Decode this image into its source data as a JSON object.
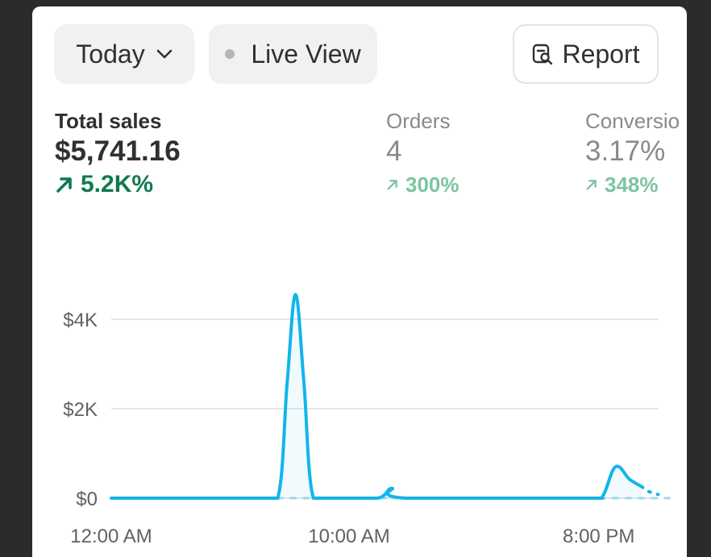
{
  "toolbar": {
    "date_label": "Today",
    "live_label": "Live View",
    "report_label": "Report"
  },
  "metrics": {
    "total_sales": {
      "label": "Total sales",
      "value": "$5,741.16",
      "change": "5.2K%"
    },
    "orders": {
      "label": "Orders",
      "value": "4",
      "change": "300%"
    },
    "conversion": {
      "label": "Conversio",
      "value": "3.17%",
      "change": "348%"
    }
  },
  "chart_data": {
    "type": "line",
    "y_ticks": [
      "$4K",
      "$2K",
      "$0"
    ],
    "x_ticks": [
      "12:00 AM",
      "10:00 AM",
      "8:00 PM"
    ],
    "ylim": [
      0,
      4800
    ],
    "series": [
      {
        "style": "solid",
        "color": "#13b5ea",
        "x": [
          0,
          6,
          7,
          7.4,
          7.75,
          8.1,
          8.5,
          9.5,
          11.2,
          11.8,
          12.4,
          19.8,
          20.6,
          21.2,
          21.8,
          22.3
        ],
        "values": [
          0,
          0,
          0,
          2600,
          4550,
          2600,
          0,
          0,
          0,
          220,
          0,
          0,
          0,
          700,
          420,
          260
        ]
      },
      {
        "style": "dotted",
        "color": "#13b5ea",
        "x": [
          22.3,
          22.6,
          23
        ],
        "values": [
          260,
          150,
          80
        ]
      },
      {
        "style": "dashed",
        "color": "#9fd9ee",
        "x": [
          7,
          23.5
        ],
        "values": [
          0,
          0
        ]
      }
    ],
    "xlabel": "",
    "ylabel": ""
  }
}
